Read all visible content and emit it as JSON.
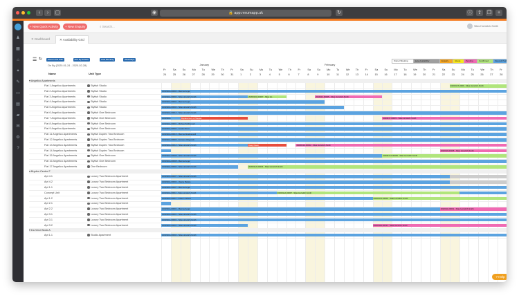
{
  "browser": {
    "url": "app.rerumapp.uk"
  },
  "topbar": {
    "new_quick_activity": "+ New Quick Activity",
    "new_enquiry": "+ New Enquiry",
    "search_placeholder": "Search...",
    "user_name": "Silas Horwitch-Smith"
  },
  "tabs": [
    {
      "label": "Dashboard"
    },
    {
      "label": "Availability Grid"
    }
  ],
  "grid": {
    "toolbar_chips": [
      "Show Units With",
      "Sort By Default",
      "Hide Blocking",
      "Weekdays"
    ],
    "date_range": "(2020-01-24 - 2020-02-28)",
    "legend": [
      "Owner Booking",
      "Late Availability",
      "Enquiry",
      "Quote",
      "Pending",
      "Confirmed",
      "Deposit Paid",
      "Paid in Full",
      "Blocked"
    ],
    "legend_colors": [
      "#ffffff",
      "#9e9e9e",
      "#f6a623",
      "#f8e71c",
      "#f06ab3",
      "#b0e57c",
      "#5ba3e0",
      "#3d4fa0",
      "#e74c3c"
    ],
    "col_name": "Name",
    "col_unit_type": "Unit Type",
    "month_january": "January",
    "month_february": "February",
    "day_letters": [
      "Fr",
      "Sa",
      "Su",
      "Mo",
      "Tu",
      "We",
      "Th",
      "Fr",
      "Sa",
      "Su",
      "Mo",
      "Tu",
      "We",
      "Th",
      "Fr",
      "Sa",
      "Su",
      "Mo",
      "Tu",
      "We",
      "Th",
      "Fr",
      "Sa",
      "Su",
      "Mo",
      "Tu",
      "We",
      "Th",
      "Fr",
      "Sa",
      "Su",
      "Mo",
      "Tu",
      "We",
      "Th",
      "Fr"
    ],
    "day_numbers": [
      "24",
      "25",
      "26",
      "27",
      "28",
      "29",
      "30",
      "31",
      "1",
      "2",
      "3",
      "4",
      "5",
      "6",
      "7",
      "8",
      "9",
      "10",
      "11",
      "12",
      "13",
      "14",
      "15",
      "16",
      "17",
      "18",
      "19",
      "20",
      "21",
      "22",
      "23",
      "24",
      "25",
      "26",
      "27",
      "28"
    ],
    "groups": [
      {
        "name": "Angelico Apartments",
        "rows": [
          {
            "name": "Flat 1 Angelico Apartments",
            "type": "Stylish Studio"
          },
          {
            "name": "Flat 2 Angelico Apartments",
            "type": "Stylish Studio"
          },
          {
            "name": "Flat 3 Angelico Apartments",
            "type": "Stylish Studio"
          },
          {
            "name": "Flat 4 Angelico Apartments",
            "type": "Stylish Studio"
          },
          {
            "name": "Flat 5 Angelico Apartments",
            "type": "Stylish Studio"
          },
          {
            "name": "Flat 6 Angelico Apartments",
            "type": "Stylish One Bedroom"
          },
          {
            "name": "Flat 7 Angelico Apartments",
            "type": "Stylish One Bedroom"
          },
          {
            "name": "Flat 8 Angelico Apartments",
            "type": "Stylish One Bedroom"
          },
          {
            "name": "Flat 9 Angelico Apartments",
            "type": "Stylish One Bedroom"
          },
          {
            "name": "Flat 11 Angelico Apartments",
            "type": "Stylish Duplex Two Bedroom"
          },
          {
            "name": "Flat 12 Angelico Apartments",
            "type": "Stylish Duplex Two Bedroom"
          },
          {
            "name": "Flat 13 Angelico Apartments",
            "type": "Stylish Duplex Two Bedroom"
          },
          {
            "name": "Flat 14 Angelico Apartments",
            "type": "Stylish Duplex Two Bedroom"
          },
          {
            "name": "Flat 15 Angelico Apartments",
            "type": "Stylish One Bedroom"
          },
          {
            "name": "Flat 16 Angelico Apartments",
            "type": "Stylish One Bedroom"
          },
          {
            "name": "Flat 17 Angelico Apartments",
            "type": "One Bedroom"
          }
        ]
      },
      {
        "name": "Bryden Centre F",
        "rows": [
          {
            "name": "Apt 4.1",
            "type": "Luxury Two Bedroom Apartment"
          },
          {
            "name": "Apt 4.2",
            "type": "Luxury Two Bedroom Apartment"
          },
          {
            "name": "Apt 1.1",
            "type": "Luxury Two Bedroom Apartment"
          },
          {
            "name": "Concept Unit",
            "type": "Luxury Two Bedroom Apartment"
          },
          {
            "name": "Apt 1.2",
            "type": "Luxury Two Bedroom Apartment"
          },
          {
            "name": "Apt 2.1",
            "type": "Luxury Two Bedroom Apartment"
          },
          {
            "name": "Apt 2.2",
            "type": "Luxury Two Bedroom Apartment"
          },
          {
            "name": "Apt 3.1",
            "type": "Luxury Two Bedroom Apartment"
          },
          {
            "name": "Apt 3.1",
            "type": "Luxury Two Bedroom Apartment"
          },
          {
            "name": "Apt 3.2",
            "type": "Luxury Two Bedroom Apartment"
          }
        ]
      },
      {
        "name": "Da Vinci Block A",
        "rows": [
          {
            "name": "Apt 1.1",
            "type": "Studio Apartment"
          }
        ]
      }
    ],
    "bars": [
      {
        "row": 0,
        "start": 30,
        "end": 36,
        "color": "#b0e57c",
        "label": "2020017A-0009 - Silas Horwitch-Smith"
      },
      {
        "row": 1,
        "start": 0,
        "end": 36,
        "color": "#5ba3e0",
        "label": "1201911A-00004 - Marcus Angel"
      },
      {
        "row": 2,
        "start": 0,
        "end": 9,
        "color": "#5ba3e0",
        "label": "1201911A-00004 - Silas Horwitch-Smith"
      },
      {
        "row": 2,
        "start": 9,
        "end": 13,
        "color": "#b0e57c",
        "label": "2020010A-00007 - Silas Ho"
      },
      {
        "row": 2,
        "start": 16,
        "end": 23,
        "color": "#f06ab3",
        "label": "2019112-00005 - Silas Horwitch-Smith"
      },
      {
        "row": 3,
        "start": 0,
        "end": 17,
        "color": "#5ba3e0",
        "label": "1201911A-00004 - Marcus Angel"
      },
      {
        "row": 4,
        "start": 0,
        "end": 19,
        "color": "#5ba3e0",
        "label": "1201911A-00004 - Silas Horwitch-Smith"
      },
      {
        "row": 5,
        "start": 0,
        "end": 36,
        "color": "#5ba3e0",
        "label": "1201911A-00014 - Silas Horwitch-Smith"
      },
      {
        "row": 6,
        "start": 0,
        "end": 2,
        "color": "#5ba3e0",
        "label": "1201911A"
      },
      {
        "row": 6,
        "start": 2,
        "end": 9,
        "color": "#e74c3c",
        "label": "Replacement of Shower"
      },
      {
        "row": 6,
        "start": 23,
        "end": 36,
        "color": "#f06ab3",
        "label": "2020017-00003 - Silas Horwitch-Smith"
      },
      {
        "row": 7,
        "start": 0,
        "end": 36,
        "color": "#5ba3e0",
        "label": "1201911A-00001 - Michael McDonnell"
      },
      {
        "row": 8,
        "start": 0,
        "end": 36,
        "color": "#5ba3e0",
        "label": "1201911A-00004 - Gustav Rees"
      },
      {
        "row": 9,
        "start": 0,
        "end": 36,
        "color": "#5ba3e0",
        "label": "1201911A-00013 - Marcus Weatherwell"
      },
      {
        "row": 10,
        "start": 0,
        "end": 36,
        "color": "#5ba3e0",
        "label": "1201911A-00003 - Frances Ghigoretti"
      },
      {
        "row": 11,
        "start": 0,
        "end": 9,
        "color": "#5ba3e0",
        "label": "1201911A-00014 - Silas Horwitch-Smith"
      },
      {
        "row": 11,
        "start": 9,
        "end": 13,
        "color": "#e74c3c",
        "label": "Deep Clean"
      },
      {
        "row": 11,
        "start": 14,
        "end": 36,
        "color": "#f06ab3",
        "label": "2020011A-00002 - Silas Horwitch-Smith"
      },
      {
        "row": 12,
        "start": 0,
        "end": 1,
        "color": "#5ba3e0",
        "label": ""
      },
      {
        "row": 12,
        "start": 29,
        "end": 36,
        "color": "#f06ab3",
        "label": "2020016-00005 - Silas Horwitch-Smith"
      },
      {
        "row": 13,
        "start": 0,
        "end": 36,
        "color": "#5ba3e0",
        "label": "1201911A-00008 - Silas Horwitch-Smith"
      },
      {
        "row": 13,
        "start": 23,
        "end": 36,
        "color": "#b0e57c",
        "label": "2020017A-00005 - Silas Horwitch-Smith"
      },
      {
        "row": 14,
        "start": 0,
        "end": 36,
        "color": "#5ba3e0",
        "label": "1201911A-00008 - Marcus Angel"
      },
      {
        "row": 15,
        "start": 0,
        "end": 8,
        "color": "#5ba3e0",
        "label": "1201911A-00004 - Silas Horwitch-Smith"
      },
      {
        "row": 15,
        "start": 9,
        "end": 36,
        "color": "#b0e57c",
        "label": "2020011A-00004 - Silas Horwitch-Smith"
      },
      {
        "row": 16,
        "start": 0,
        "end": 30,
        "color": "#5ba3e0",
        "label": "1201911A-00007 - Silas Horwitch-Smith"
      },
      {
        "row": 16,
        "start": 30,
        "end": 36,
        "color": "#cccccc",
        "label": ""
      },
      {
        "row": 17,
        "start": 0,
        "end": 30,
        "color": "#5ba3e0",
        "label": "1201911A-00002 - Valerie Batiste"
      },
      {
        "row": 17,
        "start": 30,
        "end": 36,
        "color": "#cccccc",
        "label": ""
      },
      {
        "row": 18,
        "start": 0,
        "end": 36,
        "color": "#5ba3e0",
        "label": "1201911A-00007 - Marcus Angel"
      },
      {
        "row": 19,
        "start": 0,
        "end": 36,
        "color": "#5ba3e0",
        "label": "1201911A-00011 - Silas Horwitch-Smith"
      },
      {
        "row": 19,
        "start": 12,
        "end": 31,
        "color": "#b0e57c",
        "label": "2020011A-00007 - Silas Horwitch-Smith"
      },
      {
        "row": 20,
        "start": 0,
        "end": 36,
        "color": "#5ba3e0",
        "label": "1201911A-00011 - Gideon Gibson"
      },
      {
        "row": 20,
        "start": 22,
        "end": 36,
        "color": "#b0e57c",
        "label": "2020017A-00001 - Silas Horwitch-Smith"
      },
      {
        "row": 21,
        "start": 0,
        "end": 1,
        "color": "#5ba3e0",
        "label": ""
      },
      {
        "row": 22,
        "start": 0,
        "end": 36,
        "color": "#5ba3e0",
        "label": "1201911A-00001 - Marcus Angel"
      },
      {
        "row": 22,
        "start": 29,
        "end": 36,
        "color": "#f06ab3",
        "label": "2020011-00001 - Silas Horwitch-Smith"
      },
      {
        "row": 23,
        "start": 0,
        "end": 36,
        "color": "#5ba3e0",
        "label": "1201911A-00001 - Silas Horwitch-Smith"
      },
      {
        "row": 24,
        "start": 0,
        "end": 36,
        "color": "#5ba3e0",
        "label": "1201911A-00001 - Silas Horwitch-Smith"
      },
      {
        "row": 25,
        "start": 0,
        "end": 9,
        "color": "#5ba3e0",
        "label": "1201911A-00001 - Silas Horwitch-Smith"
      },
      {
        "row": 25,
        "start": 22,
        "end": 36,
        "color": "#f06ab3",
        "label": "2020011A-00011 - Silas Horwitch-Smith"
      },
      {
        "row": 26,
        "start": 0,
        "end": 36,
        "color": "#5ba3e0",
        "label": "1201911A-00004 - Silas Horwitch-Smith"
      }
    ]
  },
  "help": {
    "label": "Help"
  }
}
